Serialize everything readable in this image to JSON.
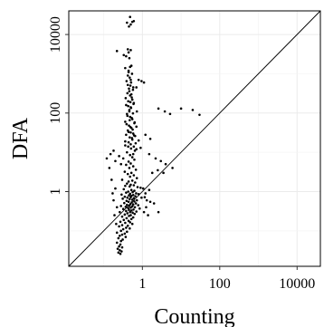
{
  "chart_data": {
    "type": "scatter",
    "xlabel": "Counting",
    "ylabel": "DFA",
    "log_x": true,
    "log_y": true,
    "xlim": [
      0.0125,
      40000
    ],
    "ylim": [
      0.0125,
      40000
    ],
    "x_ticks": [
      {
        "value": 1,
        "label": "1"
      },
      {
        "value": 100,
        "label": "100"
      },
      {
        "value": 10000,
        "label": "10000"
      }
    ],
    "y_ticks": [
      {
        "value": 1,
        "label": "1"
      },
      {
        "value": 100,
        "label": "100"
      },
      {
        "value": 10000,
        "label": "10000"
      }
    ],
    "reference_line": "y = x",
    "grid": true,
    "legend": "none",
    "point_color": "#000000",
    "series": [
      {
        "points": [
          [
            0.48,
            28000
          ],
          [
            0.4,
            20000
          ],
          [
            0.55,
            21000
          ],
          [
            0.45,
            16000
          ],
          [
            0.6,
            22000
          ],
          [
            0.5,
            18000
          ],
          [
            0.22,
            3800
          ],
          [
            0.33,
            3000
          ],
          [
            0.42,
            4200
          ],
          [
            0.44,
            3500
          ],
          [
            0.5,
            4000
          ],
          [
            0.38,
            2800
          ],
          [
            0.46,
            2500
          ],
          [
            0.48,
            1500
          ],
          [
            0.36,
            1400
          ],
          [
            0.44,
            1200
          ],
          [
            0.52,
            1600
          ],
          [
            0.42,
            900
          ],
          [
            0.5,
            700
          ],
          [
            0.39,
            650
          ],
          [
            0.49,
            500
          ],
          [
            0.45,
            420
          ],
          [
            0.57,
            390
          ],
          [
            0.8,
            700
          ],
          [
            0.95,
            650
          ],
          [
            1.1,
            600
          ],
          [
            0.7,
            450
          ],
          [
            0.41,
            320
          ],
          [
            0.48,
            280
          ],
          [
            0.53,
            250
          ],
          [
            0.43,
            200
          ],
          [
            0.6,
            180
          ],
          [
            0.38,
            160
          ],
          [
            0.5,
            140
          ],
          [
            0.46,
            120
          ],
          [
            0.72,
            110
          ],
          [
            2.6,
            130
          ],
          [
            3.8,
            110
          ],
          [
            5.2,
            95
          ],
          [
            10,
            130
          ],
          [
            20,
            120
          ],
          [
            30,
            90
          ],
          [
            0.4,
            95
          ],
          [
            0.48,
            80
          ],
          [
            0.55,
            70
          ],
          [
            0.36,
            60
          ],
          [
            0.62,
            55
          ],
          [
            0.45,
            48
          ],
          [
            0.52,
            42
          ],
          [
            0.7,
            45
          ],
          [
            0.42,
            36
          ],
          [
            0.5,
            32
          ],
          [
            0.58,
            30
          ],
          [
            0.38,
            28
          ],
          [
            0.65,
            26
          ],
          [
            0.47,
            24
          ],
          [
            0.55,
            21
          ],
          [
            0.8,
            20
          ],
          [
            1.2,
            28
          ],
          [
            1.6,
            22
          ],
          [
            0.44,
            18
          ],
          [
            0.5,
            16
          ],
          [
            0.36,
            15
          ],
          [
            0.6,
            14
          ],
          [
            0.7,
            12
          ],
          [
            0.9,
            13
          ],
          [
            1.5,
            9
          ],
          [
            2.2,
            7
          ],
          [
            3.0,
            6
          ],
          [
            4.0,
            5
          ],
          [
            6.0,
            4
          ],
          [
            2.5,
            3.5
          ],
          [
            1.8,
            3
          ],
          [
            3.5,
            3
          ],
          [
            0.12,
            7
          ],
          [
            0.15,
            9
          ],
          [
            0.18,
            11
          ],
          [
            0.2,
            6
          ],
          [
            0.25,
            8
          ],
          [
            0.28,
            5
          ],
          [
            0.14,
            4
          ],
          [
            0.4,
            10
          ],
          [
            0.48,
            8.5
          ],
          [
            0.55,
            7.5
          ],
          [
            0.32,
            7
          ],
          [
            0.62,
            6.5
          ],
          [
            0.44,
            5.8
          ],
          [
            0.5,
            5.2
          ],
          [
            0.38,
            4.8
          ],
          [
            0.58,
            4.4
          ],
          [
            0.46,
            4.0
          ],
          [
            0.68,
            3.6
          ],
          [
            0.35,
            3.2
          ],
          [
            0.52,
            3.0
          ],
          [
            0.42,
            2.8
          ],
          [
            0.6,
            2.6
          ],
          [
            0.48,
            2.4
          ],
          [
            0.72,
            2.2
          ],
          [
            0.3,
            2.0
          ],
          [
            0.55,
            1.9
          ],
          [
            0.44,
            1.8
          ],
          [
            0.65,
            1.7
          ],
          [
            0.4,
            1.6
          ],
          [
            0.5,
            1.5
          ],
          [
            0.6,
            1.45
          ],
          [
            0.36,
            1.4
          ],
          [
            0.47,
            1.35
          ],
          [
            0.75,
            1.3
          ],
          [
            0.9,
            1.25
          ],
          [
            1.05,
            1.2
          ],
          [
            0.33,
            1.15
          ],
          [
            0.52,
            1.1
          ],
          [
            0.62,
            1.05
          ],
          [
            0.43,
            1.0
          ],
          [
            0.56,
            0.97
          ],
          [
            0.38,
            0.94
          ],
          [
            0.69,
            0.9
          ],
          [
            0.48,
            0.88
          ],
          [
            0.8,
            0.86
          ],
          [
            0.29,
            0.84
          ],
          [
            0.58,
            0.82
          ],
          [
            0.45,
            0.8
          ],
          [
            0.52,
            0.78
          ],
          [
            0.66,
            0.76
          ],
          [
            0.35,
            0.74
          ],
          [
            0.5,
            0.72
          ],
          [
            0.41,
            0.7
          ],
          [
            0.6,
            0.68
          ],
          [
            0.95,
            0.7
          ],
          [
            1.15,
            0.72
          ],
          [
            0.31,
            0.66
          ],
          [
            0.47,
            0.64
          ],
          [
            0.55,
            0.62
          ],
          [
            0.72,
            0.6
          ],
          [
            0.39,
            0.58
          ],
          [
            0.62,
            0.56
          ],
          [
            0.44,
            0.55
          ],
          [
            0.53,
            0.53
          ],
          [
            0.34,
            0.51
          ],
          [
            0.68,
            0.5
          ],
          [
            0.49,
            0.48
          ],
          [
            0.58,
            0.47
          ],
          [
            0.4,
            0.46
          ],
          [
            0.78,
            0.45
          ],
          [
            0.46,
            0.44
          ],
          [
            0.28,
            0.43
          ],
          [
            0.55,
            0.42
          ],
          [
            0.37,
            0.41
          ],
          [
            0.64,
            0.4
          ],
          [
            0.5,
            0.39
          ],
          [
            0.43,
            0.38
          ],
          [
            0.85,
            0.37
          ],
          [
            0.32,
            0.36
          ],
          [
            0.59,
            0.35
          ],
          [
            0.45,
            0.34
          ],
          [
            0.52,
            0.33
          ],
          [
            0.38,
            0.32
          ],
          [
            0.7,
            0.31
          ],
          [
            0.48,
            0.3
          ],
          [
            0.26,
            0.3
          ],
          [
            0.56,
            0.29
          ],
          [
            0.41,
            0.28
          ],
          [
            0.63,
            0.27
          ],
          [
            0.35,
            0.26
          ],
          [
            0.5,
            0.25
          ],
          [
            0.45,
            0.24
          ],
          [
            0.3,
            0.23
          ],
          [
            0.58,
            0.22
          ],
          [
            0.39,
            0.21
          ],
          [
            0.52,
            0.2
          ],
          [
            0.33,
            0.19
          ],
          [
            0.44,
            0.18
          ],
          [
            0.27,
            0.17
          ],
          [
            0.48,
            0.165
          ],
          [
            0.36,
            0.16
          ],
          [
            0.55,
            0.15
          ],
          [
            0.3,
            0.14
          ],
          [
            0.42,
            0.135
          ],
          [
            0.25,
            0.13
          ],
          [
            0.38,
            0.12
          ],
          [
            0.47,
            0.115
          ],
          [
            0.32,
            0.11
          ],
          [
            0.28,
            0.1
          ],
          [
            0.4,
            0.095
          ],
          [
            0.22,
            0.09
          ],
          [
            0.35,
            0.085
          ],
          [
            0.3,
            0.08
          ],
          [
            0.26,
            0.075
          ],
          [
            0.37,
            0.07
          ],
          [
            0.24,
            0.065
          ],
          [
            0.31,
            0.06
          ],
          [
            0.28,
            0.055
          ],
          [
            0.22,
            0.05
          ],
          [
            0.27,
            0.045
          ],
          [
            0.25,
            0.04
          ],
          [
            0.3,
            0.038
          ],
          [
            0.23,
            0.035
          ],
          [
            0.26,
            0.032
          ],
          [
            0.29,
            0.03
          ],
          [
            0.24,
            0.028
          ],
          [
            0.27,
            0.026
          ],
          [
            1.3,
            0.6
          ],
          [
            1.6,
            0.55
          ],
          [
            2.0,
            0.5
          ],
          [
            1.25,
            0.4
          ],
          [
            1.1,
            0.3
          ],
          [
            1.4,
            0.25
          ],
          [
            1.2,
            0.9
          ],
          [
            1.5,
            1.1
          ],
          [
            2.6,
            0.3
          ],
          [
            0.2,
            1.2
          ],
          [
            0.18,
            0.6
          ],
          [
            0.22,
            0.4
          ],
          [
            0.19,
            0.25
          ],
          [
            0.21,
            0.15
          ],
          [
            0.17,
            0.9
          ],
          [
            0.16,
            2.0
          ],
          [
            0.58,
            9
          ],
          [
            0.64,
            11
          ],
          [
            0.51,
            12.5
          ],
          [
            0.43,
            14
          ],
          [
            0.67,
            17
          ],
          [
            0.36,
            19
          ],
          [
            0.54,
            23
          ],
          [
            0.61,
            27
          ],
          [
            0.44,
            33
          ],
          [
            0.56,
            38
          ],
          [
            0.49,
            44
          ],
          [
            0.39,
            52
          ],
          [
            0.63,
            58
          ],
          [
            0.47,
            66
          ],
          [
            0.53,
            75
          ],
          [
            0.41,
            85
          ],
          [
            0.57,
            98
          ],
          [
            0.46,
            110
          ],
          [
            0.51,
            135
          ],
          [
            0.43,
            150
          ],
          [
            0.59,
            170
          ],
          [
            0.49,
            190
          ],
          [
            0.55,
            220
          ],
          [
            0.37,
            240
          ],
          [
            0.52,
            300
          ],
          [
            0.46,
            360
          ],
          [
            0.58,
            450
          ],
          [
            0.42,
            520
          ],
          [
            0.51,
            600
          ],
          [
            0.47,
            800
          ],
          [
            0.54,
            1000
          ],
          [
            0.44,
            1100
          ]
        ]
      }
    ]
  }
}
